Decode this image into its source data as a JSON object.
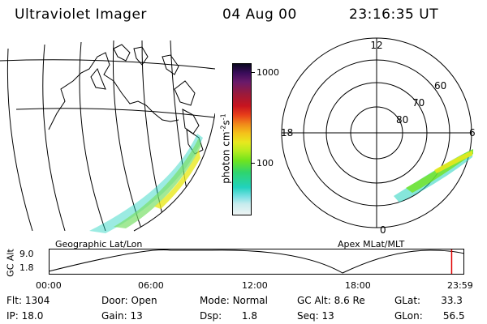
{
  "header": {
    "instrument": "Ultraviolet Imager",
    "date": "04 Aug 00",
    "time": "23:16:35 UT"
  },
  "geo_panel": {
    "caption": "Geographic Lat/Lon"
  },
  "polar_panel": {
    "caption": "Apex MLat/MLT",
    "mlt_labels": {
      "top": "12",
      "left": "18",
      "right": "6",
      "bottom": "0"
    },
    "lat_labels": [
      "60",
      "70",
      "80"
    ]
  },
  "colorbar": {
    "label_main": "photon cm",
    "label_sup1": "-2",
    "label_mid": "s",
    "label_sup2": "-1",
    "ticks": [
      "1000",
      "100"
    ],
    "colors": [
      "#0a0820",
      "#3a0c5a",
      "#6a1a6a",
      "#9b1a3a",
      "#c8141e",
      "#e8401a",
      "#f08a1a",
      "#f4c21a",
      "#e8e81e",
      "#b4ec1e",
      "#70e41e",
      "#2ed46e",
      "#22d2be",
      "#7ae0e4",
      "#c8ecee",
      "#eef4f4"
    ]
  },
  "timeline": {
    "y_label": "GC Alt",
    "y_ticks": [
      "9.0",
      "1.8"
    ],
    "x_ticks": [
      "00:00",
      "06:00",
      "12:00",
      "18:00",
      "23:59"
    ],
    "current_marker_hours": 23.27
  },
  "status": {
    "flt": {
      "label": "Flt:",
      "value": "1304"
    },
    "ip": {
      "label": "IP:",
      "value": "18.0"
    },
    "door": {
      "label": "Door:",
      "value": "Open"
    },
    "gain": {
      "label": "Gain:",
      "value": "13"
    },
    "mode": {
      "label": "Mode:",
      "value": "Normal"
    },
    "dsp": {
      "label": "Dsp:",
      "value": "1.8"
    },
    "gcalt": {
      "label": "GC Alt:",
      "value": "8.6 Re"
    },
    "seq": {
      "label": "Seq:",
      "value": "13"
    },
    "glat": {
      "label": "GLat:",
      "value": "33.3"
    },
    "glon": {
      "label": "GLon:",
      "value": "56.5"
    }
  }
}
